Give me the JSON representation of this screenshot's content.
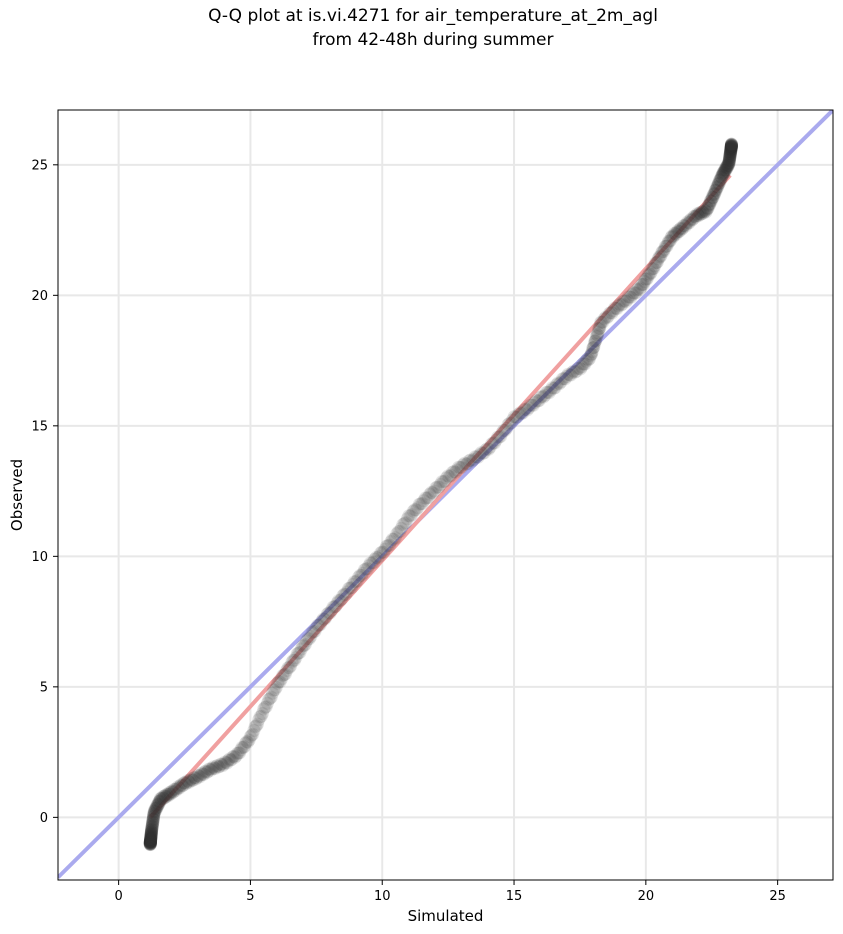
{
  "chart_data": {
    "type": "scatter",
    "title_lines": [
      "Q-Q plot at is.vi.4271 for air_temperature_at_2m_agl",
      "from 42-48h during summer"
    ],
    "xlabel": "Simulated",
    "ylabel": "Observed",
    "xlim": [
      -2.3,
      27.1
    ],
    "ylim": [
      -2.4,
      27.1
    ],
    "xticks": [
      0,
      5,
      10,
      15,
      20,
      25
    ],
    "yticks": [
      0,
      5,
      10,
      15,
      20,
      25
    ],
    "grid": true,
    "legend": "none",
    "colors": {
      "points": "#333333",
      "identity_line": "#aaaaee",
      "fit_line": "#f0a0a0",
      "fit_core": "#8b0000"
    },
    "quantile_curve": [
      [
        1.2,
        -1.0
      ],
      [
        1.25,
        -0.5
      ],
      [
        1.35,
        0.2
      ],
      [
        1.6,
        0.7
      ],
      [
        2.0,
        0.95
      ],
      [
        2.5,
        1.3
      ],
      [
        3.0,
        1.55
      ],
      [
        3.5,
        1.85
      ],
      [
        4.0,
        2.05
      ],
      [
        4.5,
        2.4
      ],
      [
        5.0,
        3.05
      ],
      [
        5.5,
        4.1
      ],
      [
        6.0,
        5.05
      ],
      [
        6.5,
        5.8
      ],
      [
        7.0,
        6.55
      ],
      [
        7.5,
        7.25
      ],
      [
        8.0,
        7.85
      ],
      [
        8.5,
        8.45
      ],
      [
        9.0,
        9.05
      ],
      [
        9.5,
        9.65
      ],
      [
        10.0,
        10.15
      ],
      [
        10.5,
        10.75
      ],
      [
        11.0,
        11.5
      ],
      [
        11.5,
        12.05
      ],
      [
        12.0,
        12.55
      ],
      [
        12.5,
        13.05
      ],
      [
        13.0,
        13.45
      ],
      [
        13.5,
        13.75
      ],
      [
        14.0,
        14.1
      ],
      [
        14.5,
        14.65
      ],
      [
        15.0,
        15.3
      ],
      [
        15.5,
        15.65
      ],
      [
        16.0,
        16.05
      ],
      [
        16.5,
        16.45
      ],
      [
        17.0,
        16.9
      ],
      [
        17.5,
        17.2
      ],
      [
        17.9,
        17.65
      ],
      [
        18.1,
        18.3
      ],
      [
        18.3,
        18.95
      ],
      [
        18.8,
        19.45
      ],
      [
        19.3,
        19.85
      ],
      [
        19.8,
        20.3
      ],
      [
        20.2,
        20.9
      ],
      [
        20.6,
        21.6
      ],
      [
        21.0,
        22.25
      ],
      [
        21.4,
        22.6
      ],
      [
        21.9,
        23.05
      ],
      [
        22.3,
        23.25
      ],
      [
        22.6,
        23.9
      ],
      [
        22.9,
        24.6
      ],
      [
        23.15,
        25.05
      ],
      [
        23.25,
        25.75
      ]
    ],
    "identity_line": {
      "x": [
        -2.3,
        27.1
      ],
      "y": [
        -2.3,
        27.1
      ]
    },
    "fit_line": {
      "x": [
        1.2,
        23.2
      ],
      "y": [
        0.0,
        24.6
      ]
    }
  }
}
